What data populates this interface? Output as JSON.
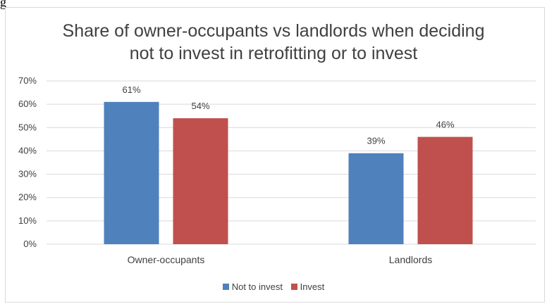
{
  "header_fragment": "g",
  "chart_data": {
    "type": "bar",
    "title_lines": [
      "Share of owner-occupants vs landlords when deciding",
      "not to invest in retrofitting or to invest"
    ],
    "categories": [
      "Owner-occupants",
      "Landlords"
    ],
    "series": [
      {
        "name": "Not to invest",
        "values": [
          61,
          39
        ],
        "labels": [
          "61%",
          "39%"
        ],
        "color": "#4f81bd"
      },
      {
        "name": "Invest",
        "values": [
          54,
          46
        ],
        "labels": [
          "54%",
          "46%"
        ],
        "color": "#c0504d"
      }
    ],
    "ylim": [
      0,
      70
    ],
    "yticks": [
      "0%",
      "10%",
      "20%",
      "30%",
      "40%",
      "50%",
      "60%",
      "70%"
    ],
    "grid": true,
    "legend_position": "bottom",
    "gridline_color": "#d9d9d9"
  }
}
